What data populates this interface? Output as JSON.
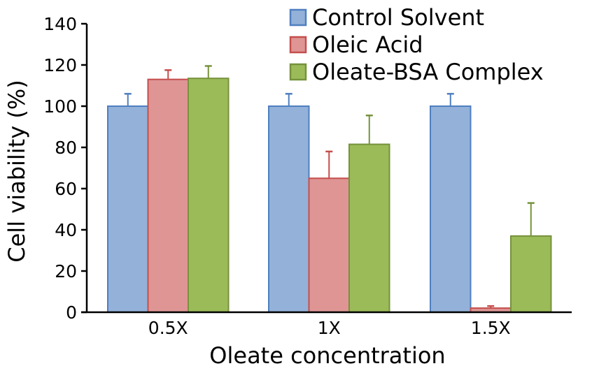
{
  "chart_data": {
    "type": "bar",
    "title": "",
    "xlabel": "Oleate concentration",
    "ylabel": "Cell viability (%)",
    "ylim": [
      0,
      140
    ],
    "yticks": [
      0,
      20,
      40,
      60,
      80,
      100,
      120,
      140
    ],
    "categories": [
      "0.5X",
      "1X",
      "1.5X"
    ],
    "series": [
      {
        "name": "Control Solvent",
        "fill": "#93b1d9",
        "stroke": "#4f7fc0",
        "values": [
          100,
          100,
          100
        ],
        "errors": [
          6,
          6,
          6
        ]
      },
      {
        "name": "Oleic Acid",
        "fill": "#de9594",
        "stroke": "#c44e4c",
        "values": [
          113,
          65,
          2
        ],
        "errors": [
          4.5,
          13,
          1
        ]
      },
      {
        "name": "Oleate-BSA Complex",
        "fill": "#9bbb59",
        "stroke": "#76923c",
        "values": [
          113.5,
          81.5,
          37
        ],
        "errors": [
          6,
          14,
          16
        ]
      }
    ],
    "legend": "top-right",
    "grid": false
  }
}
